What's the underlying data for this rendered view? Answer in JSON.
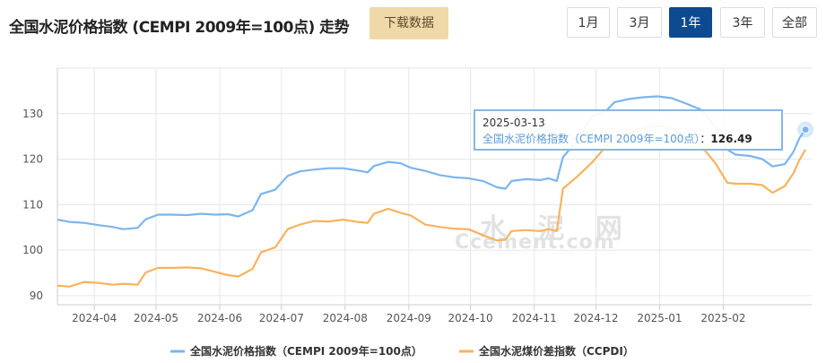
{
  "header": {
    "title": "全国水泥价格指数 (CEMPI 2009年=100点) 走势",
    "download_label": "下载数据",
    "ranges": [
      {
        "label": "1月",
        "active": false
      },
      {
        "label": "3月",
        "active": false
      },
      {
        "label": "1年",
        "active": true
      },
      {
        "label": "3年",
        "active": false
      },
      {
        "label": "全部",
        "active": false
      }
    ]
  },
  "watermark": {
    "cn": "水 泥 网",
    "en": "Ccement.com"
  },
  "tooltip": {
    "date": "2025-03-13",
    "series": "全国水泥价格指数（CEMPI 2009年=100点）",
    "sep": "：",
    "value": "126.49"
  },
  "colors": {
    "cempi": "#7cb5ec",
    "ccpdi": "#f7b35d",
    "grid": "#e6e6e6"
  },
  "chart_data": {
    "type": "line",
    "x_type": "date",
    "x_ticks": [
      "2024-04",
      "2024-05",
      "2024-06",
      "2024-07",
      "2024-08",
      "2024-09",
      "2024-10",
      "2024-11",
      "2024-12",
      "2025-01",
      "2025-02"
    ],
    "y_ticks": [
      90,
      100,
      110,
      120,
      130
    ],
    "ylim": [
      88,
      140
    ],
    "xlim": [
      "2024-03-14",
      "2025-03-16"
    ],
    "grid": true,
    "legend_position": "bottom",
    "series": [
      {
        "name": "全国水泥价格指数（CEMPI 2009年=100点）",
        "color": "#7cb5ec",
        "points": [
          [
            "2024-03-14",
            106.7
          ],
          [
            "2024-03-20",
            106.2
          ],
          [
            "2024-03-27",
            106.0
          ],
          [
            "2024-04-03",
            105.5
          ],
          [
            "2024-04-10",
            105.1
          ],
          [
            "2024-04-15",
            104.6
          ],
          [
            "2024-04-22",
            104.9
          ],
          [
            "2024-04-26",
            106.8
          ],
          [
            "2024-05-02",
            107.8
          ],
          [
            "2024-05-09",
            107.8
          ],
          [
            "2024-05-16",
            107.7
          ],
          [
            "2024-05-23",
            108.0
          ],
          [
            "2024-05-30",
            107.8
          ],
          [
            "2024-06-05",
            107.9
          ],
          [
            "2024-06-10",
            107.4
          ],
          [
            "2024-06-17",
            108.8
          ],
          [
            "2024-06-21",
            112.3
          ],
          [
            "2024-06-28",
            113.3
          ],
          [
            "2024-07-04",
            116.3
          ],
          [
            "2024-07-10",
            117.3
          ],
          [
            "2024-07-17",
            117.7
          ],
          [
            "2024-07-24",
            118.0
          ],
          [
            "2024-07-31",
            118.0
          ],
          [
            "2024-08-07",
            117.5
          ],
          [
            "2024-08-12",
            117.1
          ],
          [
            "2024-08-15",
            118.5
          ],
          [
            "2024-08-22",
            119.4
          ],
          [
            "2024-08-28",
            119.1
          ],
          [
            "2024-09-02",
            118.1
          ],
          [
            "2024-09-09",
            117.4
          ],
          [
            "2024-09-16",
            116.5
          ],
          [
            "2024-09-23",
            116.0
          ],
          [
            "2024-09-30",
            115.8
          ],
          [
            "2024-10-07",
            115.2
          ],
          [
            "2024-10-14",
            113.8
          ],
          [
            "2024-10-18",
            113.5
          ],
          [
            "2024-10-21",
            115.2
          ],
          [
            "2024-10-28",
            115.6
          ],
          [
            "2024-11-04",
            115.4
          ],
          [
            "2024-11-08",
            115.8
          ],
          [
            "2024-11-12",
            115.2
          ],
          [
            "2024-11-15",
            120.4
          ],
          [
            "2024-11-22",
            124.2
          ],
          [
            "2024-11-29",
            129.4
          ],
          [
            "2024-12-06",
            130.6
          ],
          [
            "2024-12-10",
            132.5
          ],
          [
            "2024-12-17",
            133.2
          ],
          [
            "2024-12-24",
            133.6
          ],
          [
            "2024-12-31",
            133.8
          ],
          [
            "2025-01-07",
            133.4
          ],
          [
            "2025-01-14",
            132.2
          ],
          [
            "2025-01-21",
            130.9
          ],
          [
            "2025-01-28",
            127.2
          ],
          [
            "2025-02-03",
            122.1
          ],
          [
            "2025-02-07",
            121.0
          ],
          [
            "2025-02-14",
            120.7
          ],
          [
            "2025-02-20",
            120.0
          ],
          [
            "2025-02-25",
            118.4
          ],
          [
            "2025-03-03",
            118.9
          ],
          [
            "2025-03-07",
            121.5
          ],
          [
            "2025-03-10",
            124.6
          ],
          [
            "2025-03-13",
            126.49
          ]
        ]
      },
      {
        "name": "全国水泥煤价差指数（CCPDI）",
        "color": "#f7b35d",
        "points": [
          [
            "2024-03-14",
            92.2
          ],
          [
            "2024-03-20",
            92.0
          ],
          [
            "2024-03-27",
            93.0
          ],
          [
            "2024-04-03",
            92.8
          ],
          [
            "2024-04-10",
            92.4
          ],
          [
            "2024-04-15",
            92.6
          ],
          [
            "2024-04-22",
            92.4
          ],
          [
            "2024-04-26",
            95.1
          ],
          [
            "2024-05-02",
            96.1
          ],
          [
            "2024-05-09",
            96.1
          ],
          [
            "2024-05-16",
            96.2
          ],
          [
            "2024-05-23",
            96.0
          ],
          [
            "2024-05-30",
            95.2
          ],
          [
            "2024-06-05",
            94.5
          ],
          [
            "2024-06-10",
            94.2
          ],
          [
            "2024-06-17",
            95.9
          ],
          [
            "2024-06-21",
            99.5
          ],
          [
            "2024-06-28",
            100.6
          ],
          [
            "2024-07-04",
            104.6
          ],
          [
            "2024-07-10",
            105.6
          ],
          [
            "2024-07-17",
            106.4
          ],
          [
            "2024-07-24",
            106.3
          ],
          [
            "2024-07-31",
            106.7
          ],
          [
            "2024-08-07",
            106.2
          ],
          [
            "2024-08-12",
            106.0
          ],
          [
            "2024-08-15",
            108.0
          ],
          [
            "2024-08-22",
            109.1
          ],
          [
            "2024-08-28",
            108.2
          ],
          [
            "2024-09-02",
            107.6
          ],
          [
            "2024-09-09",
            105.6
          ],
          [
            "2024-09-16",
            105.1
          ],
          [
            "2024-09-23",
            104.7
          ],
          [
            "2024-09-30",
            104.6
          ],
          [
            "2024-10-07",
            103.3
          ],
          [
            "2024-10-14",
            102.1
          ],
          [
            "2024-10-18",
            102.3
          ],
          [
            "2024-10-21",
            104.2
          ],
          [
            "2024-10-28",
            104.4
          ],
          [
            "2024-11-04",
            104.2
          ],
          [
            "2024-11-08",
            104.6
          ],
          [
            "2024-11-12",
            104.2
          ],
          [
            "2024-11-15",
            113.5
          ],
          [
            "2024-11-22",
            116.2
          ],
          [
            "2024-11-29",
            119.2
          ],
          [
            "2024-12-06",
            122.8
          ],
          [
            "2024-12-10",
            124.6
          ],
          [
            "2024-12-17",
            125.6
          ],
          [
            "2024-12-24",
            126.9
          ],
          [
            "2024-12-31",
            127.3
          ],
          [
            "2025-01-07",
            127.0
          ],
          [
            "2025-01-14",
            124.2
          ],
          [
            "2025-01-21",
            123.0
          ],
          [
            "2025-01-28",
            119.2
          ],
          [
            "2025-02-03",
            114.8
          ],
          [
            "2025-02-07",
            114.6
          ],
          [
            "2025-02-14",
            114.6
          ],
          [
            "2025-02-20",
            114.3
          ],
          [
            "2025-02-25",
            112.6
          ],
          [
            "2025-03-03",
            114.1
          ],
          [
            "2025-03-07",
            116.8
          ],
          [
            "2025-03-10",
            119.8
          ],
          [
            "2025-03-13",
            122.1
          ]
        ]
      }
    ],
    "highlight": {
      "date": "2025-03-13",
      "value": 126.49
    }
  }
}
